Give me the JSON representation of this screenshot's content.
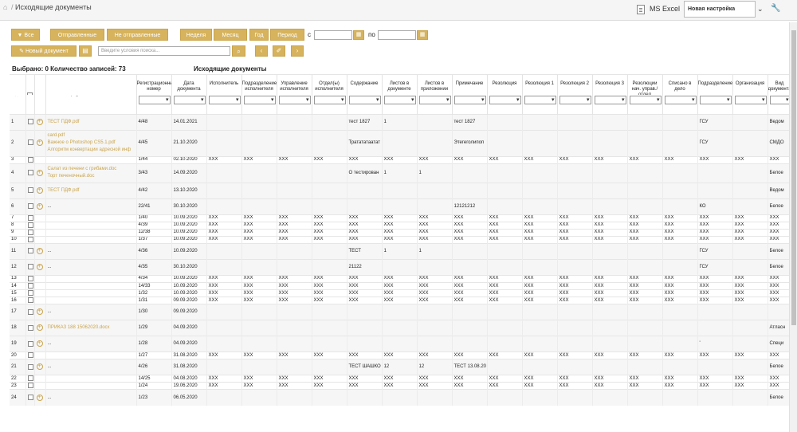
{
  "app": {
    "breadcrumb_title": "Исходящие документы"
  },
  "toolbar": {
    "excel_label": "MS Excel",
    "preset_value": "Новая настройка"
  },
  "filters": {
    "all_label": "Все",
    "sent_label": "Отправленные",
    "not_sent_label": "Не отправленные",
    "week_label": "Неделя",
    "month_label": "Месяц",
    "year_label": "Год",
    "period_label": "Период",
    "from_label": "с",
    "to_label": "по"
  },
  "actions": {
    "new_document_label": "Новый документ",
    "search_placeholder": "Введите условия поиска..."
  },
  "summary": {
    "text": "Выбрано: 0 Количество записей: 73",
    "table_title": "Исходящие документы"
  },
  "columns": [
    "№",
    "",
    "",
    "Файлы к документу",
    "Регистрационный номер",
    "Дата документа",
    "Исполнитель",
    "Подразделение исполнителя",
    "Управление исполнителя",
    "Отдел(ы) исполнителя",
    "Содержание",
    "Листов в документе",
    "Листов в приложении",
    "Примечание",
    "Резолюция",
    "Резолюция 1",
    "Резолюция 2",
    "Резолюция 3",
    "Резолюции нач. управ./отдел",
    "Списано в дело",
    "Подразделение",
    "Организация",
    "Вид документа"
  ],
  "rows": [
    {
      "n": "1",
      "files": [
        "ТЕСТ ПДФ.pdf"
      ],
      "reg": "4/48",
      "date": "14.01.2021",
      "c": [
        "",
        "",
        "",
        "",
        "тест 1827",
        "1",
        "",
        "тест 1827",
        "",
        "",
        "",
        "",
        "",
        "",
        "ГСУ",
        "",
        "Ведом"
      ]
    },
    {
      "n": "2",
      "files": [
        "card.pdf",
        "Важное о Photoshop CS5.1.pdf",
        "Алгоритм конвертации адресной инф"
      ],
      "reg": "4/45",
      "date": "21.10.2020",
      "c": [
        "",
        "",
        "",
        "",
        "Тратататаатат",
        "",
        "",
        "Этегеголипоп",
        "",
        "",
        "",
        "",
        "",
        "",
        "ГСУ",
        "",
        "СМДО"
      ]
    },
    {
      "n": "3",
      "files": [],
      "reg": "1/44",
      "date": "02.10.2020",
      "c": [
        "XXX",
        "XXX",
        "XXX",
        "XXX",
        "XXX",
        "XXX",
        "XXX",
        "XXX",
        "XXX",
        "XXX",
        "XXX",
        "XXX",
        "XXX",
        "XXX",
        "XXX",
        "XXX",
        "XXX"
      ]
    },
    {
      "n": "4",
      "files": [
        "Салат из печени с грибами.doc",
        "Торт печеночный.doc"
      ],
      "reg": "3/43",
      "date": "14.09.2020",
      "c": [
        "",
        "",
        "",
        "",
        "О тестирован",
        "1",
        "1",
        "",
        "",
        "",
        "",
        "",
        "",
        "",
        "",
        "",
        "Белое"
      ]
    },
    {
      "n": "5",
      "files": [
        "ТЕСТ ПДФ.pdf"
      ],
      "reg": "4/42",
      "date": "13.10.2020",
      "c": [
        "",
        "",
        "",
        "",
        "",
        "",
        "",
        "",
        "",
        "",
        "",
        "",
        "",
        "",
        "",
        "",
        "Ведом"
      ]
    },
    {
      "n": "6",
      "files": [
        "..."
      ],
      "reg": "22/41",
      "date": "30.10.2020",
      "c": [
        "",
        "",
        "",
        "",
        "",
        "",
        "",
        "12121212",
        "",
        "",
        "",
        "",
        "",
        "",
        "КО",
        "",
        "Белое"
      ]
    },
    {
      "n": "7",
      "files": [],
      "reg": "1/40",
      "date": "10.09.2020",
      "c": [
        "XXX",
        "XXX",
        "XXX",
        "XXX",
        "XXX",
        "XXX",
        "XXX",
        "XXX",
        "XXX",
        "XXX",
        "XXX",
        "XXX",
        "XXX",
        "XXX",
        "XXX",
        "XXX",
        "XXX"
      ]
    },
    {
      "n": "8",
      "files": [],
      "reg": "4/39",
      "date": "10.09.2020",
      "c": [
        "XXX",
        "XXX",
        "XXX",
        "XXX",
        "XXX",
        "XXX",
        "XXX",
        "XXX",
        "XXX",
        "XXX",
        "XXX",
        "XXX",
        "XXX",
        "XXX",
        "XXX",
        "XXX",
        "XXX"
      ]
    },
    {
      "n": "9",
      "files": [],
      "reg": "12/38",
      "date": "10.09.2020",
      "c": [
        "XXX",
        "XXX",
        "XXX",
        "XXX",
        "XXX",
        "XXX",
        "XXX",
        "XXX",
        "XXX",
        "XXX",
        "XXX",
        "XXX",
        "XXX",
        "XXX",
        "XXX",
        "XXX",
        "XXX"
      ]
    },
    {
      "n": "10",
      "files": [],
      "reg": "1/37",
      "date": "10.09.2020",
      "c": [
        "XXX",
        "XXX",
        "XXX",
        "XXX",
        "XXX",
        "XXX",
        "XXX",
        "XXX",
        "XXX",
        "XXX",
        "XXX",
        "XXX",
        "XXX",
        "XXX",
        "XXX",
        "XXX",
        "XXX"
      ]
    },
    {
      "n": "11",
      "files": [
        "..."
      ],
      "reg": "4/36",
      "date": "10.09.2020",
      "c": [
        "",
        "",
        "",
        "",
        "ТЕСТ",
        "1",
        "1",
        "",
        "",
        "",
        "",
        "",
        "",
        "",
        "ГСУ",
        "",
        "Белое"
      ]
    },
    {
      "n": "12",
      "files": [
        "..."
      ],
      "reg": "4/35",
      "date": "30.10.2020",
      "c": [
        "",
        "",
        "",
        "",
        "21122",
        "",
        "",
        "",
        "",
        "",
        "",
        "",
        "",
        "",
        "ГСУ",
        "",
        "Белое"
      ]
    },
    {
      "n": "13",
      "files": [],
      "reg": "4/34",
      "date": "10.09.2020",
      "c": [
        "XXX",
        "XXX",
        "XXX",
        "XXX",
        "XXX",
        "XXX",
        "XXX",
        "XXX",
        "XXX",
        "XXX",
        "XXX",
        "XXX",
        "XXX",
        "XXX",
        "XXX",
        "XXX",
        "XXX"
      ]
    },
    {
      "n": "14",
      "files": [],
      "reg": "14/33",
      "date": "10.09.2020",
      "c": [
        "XXX",
        "XXX",
        "XXX",
        "XXX",
        "XXX",
        "XXX",
        "XXX",
        "XXX",
        "XXX",
        "XXX",
        "XXX",
        "XXX",
        "XXX",
        "XXX",
        "XXX",
        "XXX",
        "XXX"
      ]
    },
    {
      "n": "15",
      "files": [],
      "reg": "1/32",
      "date": "10.09.2020",
      "c": [
        "XXX",
        "XXX",
        "XXX",
        "XXX",
        "XXX",
        "XXX",
        "XXX",
        "XXX",
        "XXX",
        "XXX",
        "XXX",
        "XXX",
        "XXX",
        "XXX",
        "XXX",
        "XXX",
        "XXX"
      ]
    },
    {
      "n": "16",
      "files": [],
      "reg": "1/31",
      "date": "09.09.2020",
      "c": [
        "XXX",
        "XXX",
        "XXX",
        "XXX",
        "XXX",
        "XXX",
        "XXX",
        "XXX",
        "XXX",
        "XXX",
        "XXX",
        "XXX",
        "XXX",
        "XXX",
        "XXX",
        "XXX",
        "XXX"
      ]
    },
    {
      "n": "17",
      "files": [
        "..."
      ],
      "reg": "1/30",
      "date": "09.09.2020",
      "c": [
        "",
        "",
        "",
        "",
        "",
        "",
        "",
        "",
        "",
        "",
        "",
        "",
        "",
        "",
        "",
        "",
        ""
      ]
    },
    {
      "n": "18",
      "files": [
        "ПРИКАЗ 188 15062020.docx"
      ],
      "reg": "1/29",
      "date": "04.09.2020",
      "c": [
        "",
        "",
        "",
        "",
        "",
        "",
        "",
        "",
        "",
        "",
        "",
        "",
        "",
        "",
        "",
        "",
        "Атласн"
      ]
    },
    {
      "n": "19",
      "files": [
        "..."
      ],
      "reg": "1/28",
      "date": "04.09.2020",
      "c": [
        "",
        "",
        "",
        "",
        "",
        "",
        "",
        "",
        "",
        "",
        "",
        "",
        "",
        "",
        "'",
        "",
        "Специ"
      ]
    },
    {
      "n": "20",
      "files": [],
      "reg": "1/27",
      "date": "31.08.2020",
      "c": [
        "XXX",
        "XXX",
        "XXX",
        "XXX",
        "XXX",
        "XXX",
        "XXX",
        "XXX",
        "XXX",
        "XXX",
        "XXX",
        "XXX",
        "XXX",
        "XXX",
        "XXX",
        "XXX",
        "XXX"
      ]
    },
    {
      "n": "21",
      "files": [
        "..."
      ],
      "reg": "4/26",
      "date": "31.08.2020",
      "c": [
        "",
        "",
        "",
        "",
        "ТЕСТ ШАШКО",
        "12",
        "12",
        "ТЕСТ 13.08.20",
        "",
        "",
        "",
        "",
        "",
        "",
        "",
        "",
        "Белое"
      ]
    },
    {
      "n": "22",
      "files": [],
      "reg": "14/25",
      "date": "04.08.2020",
      "c": [
        "XXX",
        "XXX",
        "XXX",
        "XXX",
        "XXX",
        "XXX",
        "XXX",
        "XXX",
        "XXX",
        "XXX",
        "XXX",
        "XXX",
        "XXX",
        "XXX",
        "XXX",
        "XXX",
        "XXX"
      ]
    },
    {
      "n": "23",
      "files": [],
      "reg": "1/24",
      "date": "19.06.2020",
      "c": [
        "XXX",
        "XXX",
        "XXX",
        "XXX",
        "XXX",
        "XXX",
        "XXX",
        "XXX",
        "XXX",
        "XXX",
        "XXX",
        "XXX",
        "XXX",
        "XXX",
        "XXX",
        "XXX",
        "XXX"
      ]
    },
    {
      "n": "24",
      "files": [
        "..."
      ],
      "reg": "1/23",
      "date": "06.05.2020",
      "c": [
        "",
        "",
        "",
        "",
        "",
        "",
        "",
        "",
        "",
        "",
        "",
        "",
        "",
        "",
        "",
        "",
        "Белое"
      ]
    }
  ],
  "colors": {
    "accent": "#d6b35c",
    "link": "#c9a44d"
  }
}
